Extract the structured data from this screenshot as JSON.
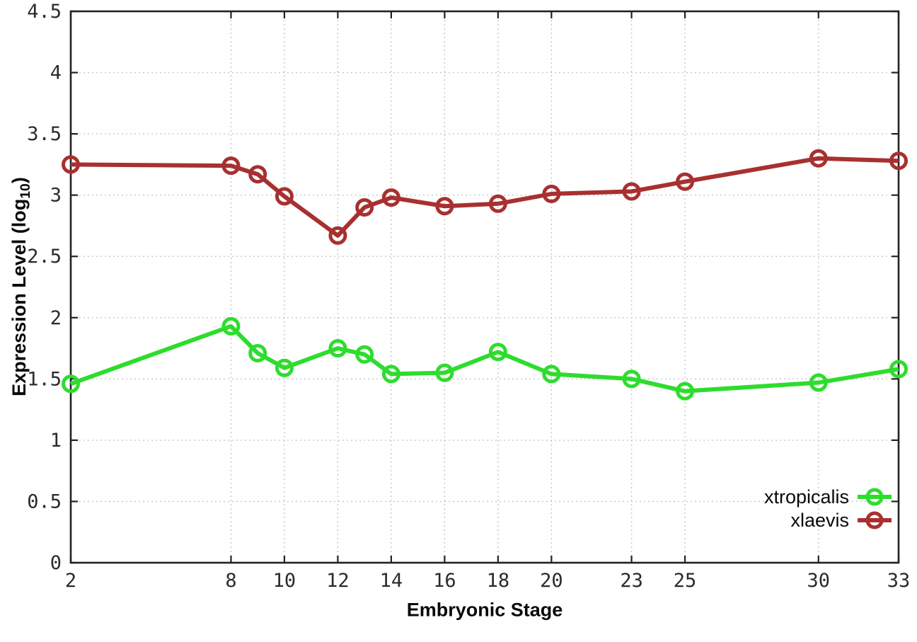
{
  "figure": {
    "background": "#ffffff",
    "border_color": "#222222",
    "grid_color": "#c7c7c7",
    "tick_label_color": "#2b2b2b"
  },
  "chart_data": {
    "type": "line",
    "title": "",
    "xlabel": "Embryonic Stage",
    "ylabel": "Expression Level (log10)",
    "ylabel_parts": {
      "prefix": "Expression Level (log",
      "sub": "10",
      "suffix": ")"
    },
    "xlim": [
      2,
      33
    ],
    "ylim": [
      0,
      4.5
    ],
    "xticks": [
      2,
      8,
      10,
      12,
      14,
      16,
      18,
      20,
      23,
      25,
      30,
      33
    ],
    "xtick_labels": [
      "2",
      "8",
      "10",
      "12",
      "14",
      "16",
      "18",
      "20",
      "23",
      "25",
      "30",
      "33"
    ],
    "yticks": [
      0,
      0.5,
      1,
      1.5,
      2,
      2.5,
      3,
      3.5,
      4,
      4.5
    ],
    "ytick_labels": [
      "0",
      "0.5",
      "1",
      "1.5",
      "2",
      "2.5",
      "3",
      "3.5",
      "4",
      "4.5"
    ],
    "grid": true,
    "legend_position": "inside-bottom-right",
    "x": [
      2,
      8,
      9,
      10,
      12,
      13,
      14,
      16,
      18,
      20,
      23,
      25,
      30,
      33
    ],
    "series": [
      {
        "name": "xtropicalis",
        "color": "#2edc2e",
        "values": [
          1.46,
          1.93,
          1.71,
          1.59,
          1.75,
          1.7,
          1.54,
          1.55,
          1.72,
          1.54,
          1.5,
          1.4,
          1.47,
          1.58
        ]
      },
      {
        "name": "xlaevis",
        "color": "#a83030",
        "values": [
          3.25,
          3.24,
          3.17,
          2.99,
          2.67,
          2.9,
          2.98,
          2.91,
          2.93,
          3.01,
          3.03,
          3.11,
          3.3,
          3.28
        ]
      }
    ]
  }
}
